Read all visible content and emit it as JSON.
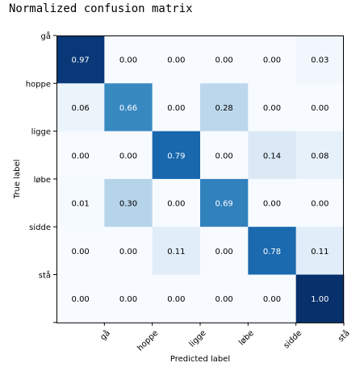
{
  "chart_data": {
    "type": "heatmap",
    "title": "Normalized confusion matrix",
    "xlabel": "Predicted label",
    "ylabel": "True label",
    "x_categories": [
      "gå",
      "hoppe",
      "ligge",
      "løbe",
      "sidde",
      "stå"
    ],
    "y_categories": [
      "gå",
      "hoppe",
      "ligge",
      "løbe",
      "sidde",
      "stå"
    ],
    "values": [
      [
        0.97,
        0.0,
        0.0,
        0.0,
        0.0,
        0.03
      ],
      [
        0.06,
        0.66,
        0.0,
        0.28,
        0.0,
        0.0
      ],
      [
        0.0,
        0.0,
        0.79,
        0.0,
        0.14,
        0.08
      ],
      [
        0.01,
        0.3,
        0.0,
        0.69,
        0.0,
        0.0
      ],
      [
        0.0,
        0.0,
        0.11,
        0.0,
        0.78,
        0.11
      ],
      [
        0.0,
        0.0,
        0.0,
        0.0,
        0.0,
        1.0
      ]
    ],
    "value_range": [
      0,
      1
    ],
    "colormap": "Blues",
    "text_color_dark": "#000000",
    "text_color_light": "#ffffff",
    "grid": false
  }
}
